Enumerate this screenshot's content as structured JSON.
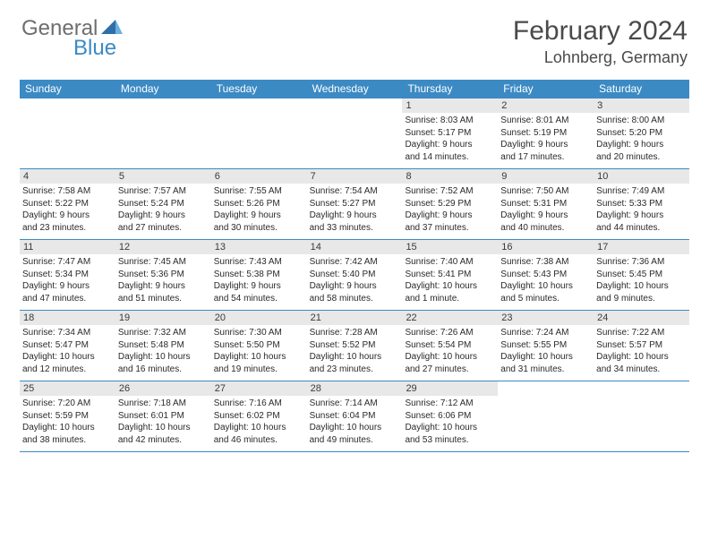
{
  "logo": {
    "general": "General",
    "blue": "Blue"
  },
  "title": "February 2024",
  "location": "Lohnberg, Germany",
  "colors": {
    "header_bg": "#3b8ac4",
    "header_text": "#ffffff",
    "daynum_bg": "#e8e8e8",
    "border": "#3b8ac4",
    "logo_gray": "#6e6e6e",
    "logo_blue": "#3b8ac4",
    "title_color": "#4a4a4a"
  },
  "day_headers": [
    "Sunday",
    "Monday",
    "Tuesday",
    "Wednesday",
    "Thursday",
    "Friday",
    "Saturday"
  ],
  "weeks": [
    [
      {
        "num": "",
        "sunrise": "",
        "sunset": "",
        "daylight1": "",
        "daylight2": "",
        "empty": true
      },
      {
        "num": "",
        "sunrise": "",
        "sunset": "",
        "daylight1": "",
        "daylight2": "",
        "empty": true
      },
      {
        "num": "",
        "sunrise": "",
        "sunset": "",
        "daylight1": "",
        "daylight2": "",
        "empty": true
      },
      {
        "num": "",
        "sunrise": "",
        "sunset": "",
        "daylight1": "",
        "daylight2": "",
        "empty": true
      },
      {
        "num": "1",
        "sunrise": "Sunrise: 8:03 AM",
        "sunset": "Sunset: 5:17 PM",
        "daylight1": "Daylight: 9 hours",
        "daylight2": "and 14 minutes."
      },
      {
        "num": "2",
        "sunrise": "Sunrise: 8:01 AM",
        "sunset": "Sunset: 5:19 PM",
        "daylight1": "Daylight: 9 hours",
        "daylight2": "and 17 minutes."
      },
      {
        "num": "3",
        "sunrise": "Sunrise: 8:00 AM",
        "sunset": "Sunset: 5:20 PM",
        "daylight1": "Daylight: 9 hours",
        "daylight2": "and 20 minutes."
      }
    ],
    [
      {
        "num": "4",
        "sunrise": "Sunrise: 7:58 AM",
        "sunset": "Sunset: 5:22 PM",
        "daylight1": "Daylight: 9 hours",
        "daylight2": "and 23 minutes."
      },
      {
        "num": "5",
        "sunrise": "Sunrise: 7:57 AM",
        "sunset": "Sunset: 5:24 PM",
        "daylight1": "Daylight: 9 hours",
        "daylight2": "and 27 minutes."
      },
      {
        "num": "6",
        "sunrise": "Sunrise: 7:55 AM",
        "sunset": "Sunset: 5:26 PM",
        "daylight1": "Daylight: 9 hours",
        "daylight2": "and 30 minutes."
      },
      {
        "num": "7",
        "sunrise": "Sunrise: 7:54 AM",
        "sunset": "Sunset: 5:27 PM",
        "daylight1": "Daylight: 9 hours",
        "daylight2": "and 33 minutes."
      },
      {
        "num": "8",
        "sunrise": "Sunrise: 7:52 AM",
        "sunset": "Sunset: 5:29 PM",
        "daylight1": "Daylight: 9 hours",
        "daylight2": "and 37 minutes."
      },
      {
        "num": "9",
        "sunrise": "Sunrise: 7:50 AM",
        "sunset": "Sunset: 5:31 PM",
        "daylight1": "Daylight: 9 hours",
        "daylight2": "and 40 minutes."
      },
      {
        "num": "10",
        "sunrise": "Sunrise: 7:49 AM",
        "sunset": "Sunset: 5:33 PM",
        "daylight1": "Daylight: 9 hours",
        "daylight2": "and 44 minutes."
      }
    ],
    [
      {
        "num": "11",
        "sunrise": "Sunrise: 7:47 AM",
        "sunset": "Sunset: 5:34 PM",
        "daylight1": "Daylight: 9 hours",
        "daylight2": "and 47 minutes."
      },
      {
        "num": "12",
        "sunrise": "Sunrise: 7:45 AM",
        "sunset": "Sunset: 5:36 PM",
        "daylight1": "Daylight: 9 hours",
        "daylight2": "and 51 minutes."
      },
      {
        "num": "13",
        "sunrise": "Sunrise: 7:43 AM",
        "sunset": "Sunset: 5:38 PM",
        "daylight1": "Daylight: 9 hours",
        "daylight2": "and 54 minutes."
      },
      {
        "num": "14",
        "sunrise": "Sunrise: 7:42 AM",
        "sunset": "Sunset: 5:40 PM",
        "daylight1": "Daylight: 9 hours",
        "daylight2": "and 58 minutes."
      },
      {
        "num": "15",
        "sunrise": "Sunrise: 7:40 AM",
        "sunset": "Sunset: 5:41 PM",
        "daylight1": "Daylight: 10 hours",
        "daylight2": "and 1 minute."
      },
      {
        "num": "16",
        "sunrise": "Sunrise: 7:38 AM",
        "sunset": "Sunset: 5:43 PM",
        "daylight1": "Daylight: 10 hours",
        "daylight2": "and 5 minutes."
      },
      {
        "num": "17",
        "sunrise": "Sunrise: 7:36 AM",
        "sunset": "Sunset: 5:45 PM",
        "daylight1": "Daylight: 10 hours",
        "daylight2": "and 9 minutes."
      }
    ],
    [
      {
        "num": "18",
        "sunrise": "Sunrise: 7:34 AM",
        "sunset": "Sunset: 5:47 PM",
        "daylight1": "Daylight: 10 hours",
        "daylight2": "and 12 minutes."
      },
      {
        "num": "19",
        "sunrise": "Sunrise: 7:32 AM",
        "sunset": "Sunset: 5:48 PM",
        "daylight1": "Daylight: 10 hours",
        "daylight2": "and 16 minutes."
      },
      {
        "num": "20",
        "sunrise": "Sunrise: 7:30 AM",
        "sunset": "Sunset: 5:50 PM",
        "daylight1": "Daylight: 10 hours",
        "daylight2": "and 19 minutes."
      },
      {
        "num": "21",
        "sunrise": "Sunrise: 7:28 AM",
        "sunset": "Sunset: 5:52 PM",
        "daylight1": "Daylight: 10 hours",
        "daylight2": "and 23 minutes."
      },
      {
        "num": "22",
        "sunrise": "Sunrise: 7:26 AM",
        "sunset": "Sunset: 5:54 PM",
        "daylight1": "Daylight: 10 hours",
        "daylight2": "and 27 minutes."
      },
      {
        "num": "23",
        "sunrise": "Sunrise: 7:24 AM",
        "sunset": "Sunset: 5:55 PM",
        "daylight1": "Daylight: 10 hours",
        "daylight2": "and 31 minutes."
      },
      {
        "num": "24",
        "sunrise": "Sunrise: 7:22 AM",
        "sunset": "Sunset: 5:57 PM",
        "daylight1": "Daylight: 10 hours",
        "daylight2": "and 34 minutes."
      }
    ],
    [
      {
        "num": "25",
        "sunrise": "Sunrise: 7:20 AM",
        "sunset": "Sunset: 5:59 PM",
        "daylight1": "Daylight: 10 hours",
        "daylight2": "and 38 minutes."
      },
      {
        "num": "26",
        "sunrise": "Sunrise: 7:18 AM",
        "sunset": "Sunset: 6:01 PM",
        "daylight1": "Daylight: 10 hours",
        "daylight2": "and 42 minutes."
      },
      {
        "num": "27",
        "sunrise": "Sunrise: 7:16 AM",
        "sunset": "Sunset: 6:02 PM",
        "daylight1": "Daylight: 10 hours",
        "daylight2": "and 46 minutes."
      },
      {
        "num": "28",
        "sunrise": "Sunrise: 7:14 AM",
        "sunset": "Sunset: 6:04 PM",
        "daylight1": "Daylight: 10 hours",
        "daylight2": "and 49 minutes."
      },
      {
        "num": "29",
        "sunrise": "Sunrise: 7:12 AM",
        "sunset": "Sunset: 6:06 PM",
        "daylight1": "Daylight: 10 hours",
        "daylight2": "and 53 minutes."
      },
      {
        "num": "",
        "sunrise": "",
        "sunset": "",
        "daylight1": "",
        "daylight2": "",
        "empty": true
      },
      {
        "num": "",
        "sunrise": "",
        "sunset": "",
        "daylight1": "",
        "daylight2": "",
        "empty": true
      }
    ]
  ]
}
